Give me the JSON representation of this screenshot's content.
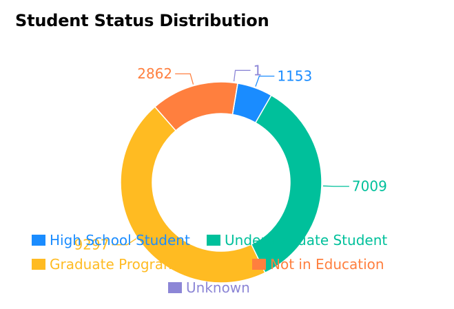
{
  "chart_data": {
    "type": "pie",
    "title": "Student Status Distribution",
    "series": [
      {
        "name": "High School Student",
        "value": 1153,
        "color": "#1a8cff"
      },
      {
        "name": "Undergraduate Student",
        "value": 7009,
        "color": "#00c09b"
      },
      {
        "name": "Graduate Program",
        "value": 9297,
        "color": "#ffbb22"
      },
      {
        "name": "Not in Education",
        "value": 2862,
        "color": "#ff7f3e"
      },
      {
        "name": "Unknown",
        "value": 1,
        "color": "#8c86d6"
      }
    ],
    "legend_placement": "bottom"
  }
}
